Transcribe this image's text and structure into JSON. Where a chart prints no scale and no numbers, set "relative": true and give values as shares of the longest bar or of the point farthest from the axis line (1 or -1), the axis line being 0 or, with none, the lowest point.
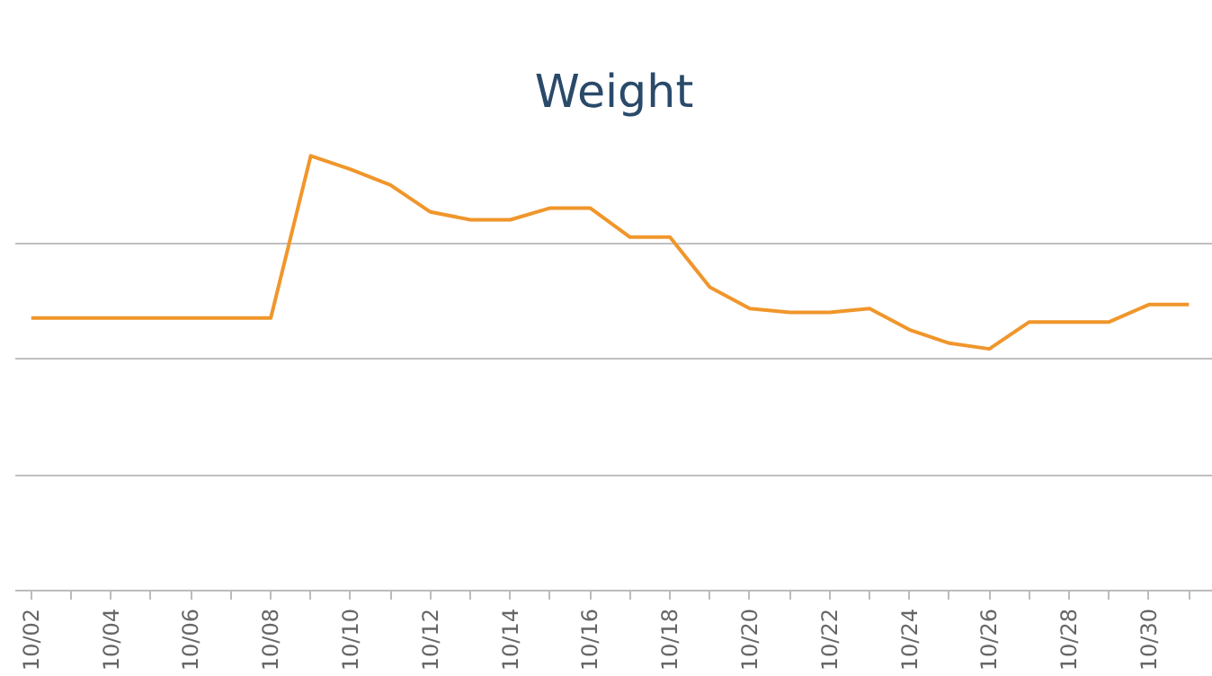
{
  "chart_data": {
    "type": "line",
    "title": "Weight",
    "relative": true,
    "grid": "y",
    "categories": [
      "10/02",
      null,
      "10/04",
      null,
      "10/06",
      null,
      "10/08",
      null,
      "10/10",
      null,
      "10/12",
      null,
      "10/14",
      null,
      "10/16",
      null,
      "10/18",
      null,
      "10/20",
      null,
      "10/22",
      null,
      "10/24",
      null,
      "10/26",
      null,
      "10/28",
      null,
      "10/30",
      null
    ],
    "series": [
      {
        "color": "#f0962b",
        "values": [
          0.627,
          0.627,
          0.627,
          0.627,
          0.627,
          0.627,
          0.627,
          1.0,
          0.969,
          0.933,
          0.871,
          0.853,
          0.853,
          0.88,
          0.88,
          0.813,
          0.813,
          0.698,
          0.649,
          0.64,
          0.64,
          0.649,
          0.6,
          0.569,
          0.556,
          0.618,
          0.618,
          0.618,
          0.658,
          0.658
        ]
      }
    ]
  }
}
